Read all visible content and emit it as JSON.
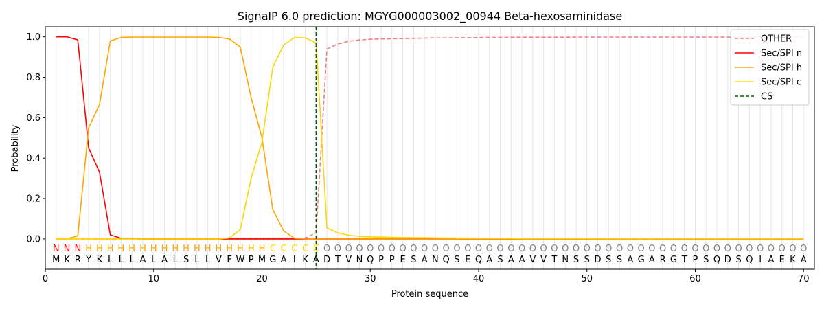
{
  "chart_data": {
    "type": "line",
    "title": "SignalP 6.0 prediction: MGYG000003002_00944 Beta-hexosaminidase",
    "xlabel": "Protein sequence",
    "ylabel": "Probability",
    "xlim": [
      0,
      71
    ],
    "ylim": [
      -0.15,
      1.05
    ],
    "xticks": [
      0,
      10,
      20,
      30,
      40,
      50,
      60,
      70
    ],
    "yticks": [
      0.0,
      0.2,
      0.4,
      0.6,
      0.8,
      1.0
    ],
    "xtick_labels": [
      "0",
      "10",
      "20",
      "30",
      "40",
      "50",
      "60",
      "70"
    ],
    "ytick_labels": [
      "0.0",
      "0.2",
      "0.4",
      "0.6",
      "0.8",
      "1.0"
    ],
    "grid": "vertical lines at each residue",
    "legend_position": "top-right",
    "sequence": [
      "M",
      "K",
      "R",
      "Y",
      "K",
      "L",
      "L",
      "L",
      "A",
      "L",
      "A",
      "L",
      "S",
      "L",
      "L",
      "V",
      "F",
      "W",
      "P",
      "M",
      "G",
      "A",
      "I",
      "K",
      "A",
      "D",
      "T",
      "V",
      "N",
      "Q",
      "P",
      "P",
      "E",
      "S",
      "A",
      "N",
      "Q",
      "S",
      "E",
      "Q",
      "A",
      "S",
      "A",
      "A",
      "V",
      "V",
      "T",
      "N",
      "S",
      "S",
      "D",
      "S",
      "S",
      "A",
      "G",
      "A",
      "R",
      "G",
      "T",
      "P",
      "S",
      "Q",
      "D",
      "S",
      "Q",
      "I",
      "A",
      "E",
      "K",
      "A"
    ],
    "region_labels": [
      "N",
      "N",
      "N",
      "H",
      "H",
      "H",
      "H",
      "H",
      "H",
      "H",
      "H",
      "H",
      "H",
      "H",
      "H",
      "H",
      "H",
      "H",
      "H",
      "H",
      "C",
      "C",
      "C",
      "C",
      "C",
      "O",
      "O",
      "O",
      "O",
      "O",
      "O",
      "O",
      "O",
      "O",
      "O",
      "O",
      "O",
      "O",
      "O",
      "O",
      "O",
      "O",
      "O",
      "O",
      "O",
      "O",
      "O",
      "O",
      "O",
      "O",
      "O",
      "O",
      "O",
      "O",
      "O",
      "O",
      "O",
      "O",
      "O",
      "O",
      "O",
      "O",
      "O",
      "O",
      "O",
      "O",
      "O",
      "O",
      "O",
      "O"
    ],
    "region_colors": {
      "N": "#ff0000",
      "H": "#ffa500",
      "C": "#ffd700",
      "O": "#808080"
    },
    "x": [
      1,
      2,
      3,
      4,
      5,
      6,
      7,
      8,
      9,
      10,
      11,
      12,
      13,
      14,
      15,
      16,
      17,
      18,
      19,
      20,
      21,
      22,
      23,
      24,
      25,
      26,
      27,
      28,
      29,
      30,
      31,
      32,
      33,
      34,
      35,
      36,
      37,
      38,
      39,
      40,
      41,
      42,
      43,
      44,
      45,
      46,
      47,
      48,
      49,
      50,
      51,
      52,
      53,
      54,
      55,
      56,
      57,
      58,
      59,
      60,
      61,
      62,
      63,
      64,
      65,
      66,
      67,
      68,
      69,
      70
    ],
    "series": [
      {
        "name": "OTHER",
        "color": "#f08080",
        "dashed": true,
        "values": [
          0,
          0,
          0,
          0,
          0,
          0,
          0,
          0,
          0,
          0,
          0,
          0,
          0,
          0,
          0,
          0,
          0,
          0,
          0,
          0,
          0,
          0,
          0,
          0.005,
          0.03,
          0.94,
          0.965,
          0.978,
          0.985,
          0.988,
          0.99,
          0.991,
          0.992,
          0.993,
          0.994,
          0.995,
          0.995,
          0.996,
          0.996,
          0.997,
          0.997,
          0.997,
          0.998,
          0.998,
          0.998,
          0.998,
          0.998,
          0.998,
          0.999,
          0.999,
          0.999,
          0.999,
          0.999,
          0.999,
          0.999,
          0.999,
          0.999,
          0.999,
          0.999,
          0.999,
          0.999,
          0.999,
          0.999,
          0.999,
          0.999,
          0.999,
          0.999,
          0.999,
          0.999,
          0.999
        ]
      },
      {
        "name": "Sec/SPI n",
        "color": "#ff0000",
        "dashed": false,
        "values": [
          1.0,
          1.0,
          0.985,
          0.45,
          0.33,
          0.02,
          0.003,
          0.001,
          0,
          0,
          0,
          0,
          0,
          0,
          0,
          0,
          0,
          0,
          0,
          0,
          0,
          0,
          0,
          0,
          0,
          0,
          0,
          0,
          0,
          0,
          0,
          0,
          0,
          0,
          0,
          0,
          0,
          0,
          0,
          0,
          0,
          0,
          0,
          0,
          0,
          0,
          0,
          0,
          0,
          0,
          0,
          0,
          0,
          0,
          0,
          0,
          0,
          0,
          0,
          0,
          0,
          0,
          0,
          0,
          0,
          0,
          0,
          0,
          0,
          0
        ]
      },
      {
        "name": "Sec/SPI h",
        "color": "#ffa500",
        "dashed": false,
        "values": [
          0,
          0,
          0.015,
          0.55,
          0.665,
          0.98,
          0.997,
          0.999,
          0.999,
          0.999,
          0.999,
          0.999,
          0.999,
          0.999,
          0.999,
          0.997,
          0.99,
          0.95,
          0.7,
          0.5,
          0.145,
          0.04,
          0.003,
          0.001,
          0,
          0,
          0,
          0,
          0,
          0,
          0,
          0,
          0,
          0,
          0,
          0,
          0,
          0,
          0,
          0,
          0,
          0,
          0,
          0,
          0,
          0,
          0,
          0,
          0,
          0,
          0,
          0,
          0,
          0,
          0,
          0,
          0,
          0,
          0,
          0,
          0,
          0,
          0,
          0,
          0,
          0,
          0,
          0,
          0,
          0
        ]
      },
      {
        "name": "Sec/SPI c",
        "color": "#ffd700",
        "dashed": false,
        "values": [
          0,
          0,
          0,
          0,
          0,
          0,
          0,
          0,
          0,
          0,
          0,
          0,
          0,
          0,
          0,
          0,
          0.005,
          0.045,
          0.3,
          0.48,
          0.85,
          0.96,
          0.997,
          0.995,
          0.97,
          0.055,
          0.03,
          0.018,
          0.013,
          0.01,
          0.009,
          0.008,
          0.007,
          0.006,
          0.006,
          0.005,
          0.005,
          0.004,
          0.004,
          0.004,
          0.003,
          0.003,
          0.003,
          0.002,
          0.002,
          0.002,
          0.002,
          0.002,
          0.002,
          0.002,
          0.001,
          0.001,
          0.001,
          0.001,
          0.001,
          0.001,
          0.001,
          0.001,
          0.001,
          0.001,
          0.001,
          0.001,
          0.001,
          0.001,
          0.001,
          0.001,
          0.001,
          0.001,
          0.001,
          0.001
        ]
      }
    ],
    "cs": {
      "name": "CS",
      "x": 25,
      "color": "#006400"
    }
  }
}
